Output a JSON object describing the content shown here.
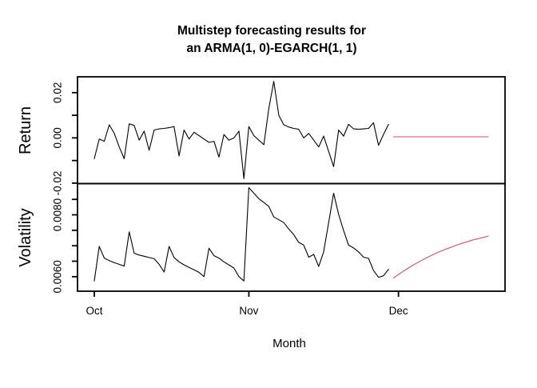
{
  "title": {
    "line1": "Multistep forecasting results for",
    "line2": "an ARMA(1, 0)-EGARCH(1, 1)"
  },
  "colors": {
    "observed": "#000000",
    "forecast": "#d25067",
    "axis": "#000000",
    "background": "#ffffff"
  },
  "x_axis": {
    "label": "Month",
    "ticks": [
      {
        "day": 0,
        "label": "Oct"
      },
      {
        "day": 31,
        "label": "Nov"
      },
      {
        "day": 61,
        "label": "Dec"
      }
    ]
  },
  "chart_data": [
    {
      "type": "line",
      "title": "Multistep forecasting results for an ARMA(1, 0)-EGARCH(1, 1)",
      "ylabel": "Return",
      "xlabel": "Month",
      "ylim": [
        -0.0202,
        0.027
      ],
      "grid": false,
      "yticks": [
        {
          "value": 0.02,
          "label": "0.02"
        },
        {
          "value": 0.01,
          "label": ""
        },
        {
          "value": 0.0,
          "label": "0.00"
        },
        {
          "value": -0.01,
          "label": ""
        },
        {
          "value": -0.02,
          "label": "-0.02"
        }
      ],
      "series": [
        {
          "name": "observed-return",
          "color_key": "observed",
          "start_day": 0,
          "values": [
            -0.0092,
            -0.0005,
            -0.0015,
            0.0058,
            0.002,
            -0.004,
            -0.0092,
            0.0062,
            0.0055,
            -0.001,
            0.003,
            -0.0055,
            0.0035,
            0.004,
            0.0042,
            0.0045,
            0.005,
            -0.008,
            0.0035,
            -0.0005,
            0.0025,
            0.001,
            -0.0005,
            -0.002,
            -0.0015,
            -0.0085,
            0.0015,
            -0.001,
            0.0,
            0.003,
            -0.018,
            0.005,
            0.001,
            -0.001,
            -0.003,
            0.013,
            0.025,
            0.01,
            0.0058,
            0.0048,
            0.0042,
            0.0038,
            0.0,
            0.002,
            -0.001,
            -0.004,
            0.0008,
            -0.006,
            -0.0127,
            0.0035,
            0.0008,
            0.006,
            0.004,
            0.0038,
            0.004,
            0.0042,
            0.0067,
            -0.0033,
            0.0015,
            0.006
          ]
        },
        {
          "name": "forecast-return",
          "color_key": "forecast",
          "start_day": 60,
          "values": [
            0.0005,
            0.0005,
            0.0005,
            0.0005,
            0.0005,
            0.0005,
            0.0005,
            0.0005,
            0.0005,
            0.0005,
            0.0005,
            0.0005,
            0.0005,
            0.0005,
            0.0005,
            0.0005,
            0.0005,
            0.0005,
            0.0005,
            0.0005
          ]
        }
      ]
    },
    {
      "type": "line",
      "ylabel": "Volatility",
      "xlabel": "Month",
      "ylim": [
        0.00553,
        0.00901
      ],
      "grid": false,
      "yticks": [
        {
          "value": 0.0085,
          "label": ""
        },
        {
          "value": 0.008,
          "label": "0.0080"
        },
        {
          "value": 0.0075,
          "label": ""
        },
        {
          "value": 0.007,
          "label": ""
        },
        {
          "value": 0.0065,
          "label": ""
        },
        {
          "value": 0.006,
          "label": "0.0060"
        }
      ],
      "series": [
        {
          "name": "observed-volatility",
          "color_key": "observed",
          "start_day": 0,
          "values": [
            0.00586,
            0.00698,
            0.0066,
            0.00652,
            0.00645,
            0.0064,
            0.00634,
            0.00745,
            0.00676,
            0.0067,
            0.00666,
            0.00662,
            0.00658,
            0.0064,
            0.00615,
            0.00698,
            0.00662,
            0.00648,
            0.00638,
            0.0063,
            0.00622,
            0.00614,
            0.006,
            0.00692,
            0.00668,
            0.0066,
            0.00648,
            0.00638,
            0.00628,
            0.006,
            0.00586,
            0.00888,
            0.0087,
            0.00852,
            0.0084,
            0.00827,
            0.00793,
            0.00784,
            0.00775,
            0.00754,
            0.00736,
            0.00711,
            0.00702,
            0.00663,
            0.00672,
            0.00633,
            0.0068,
            0.00775,
            0.0087,
            0.00801,
            0.00749,
            0.00702,
            0.00693,
            0.0068,
            0.00663,
            0.00659,
            0.0062,
            0.00598,
            0.00603,
            0.00624
          ]
        },
        {
          "name": "forecast-volatility",
          "color_key": "forecast",
          "start_day": 60,
          "values": [
            0.00596,
            0.00607,
            0.00618,
            0.00628,
            0.00638,
            0.00647,
            0.00656,
            0.00664,
            0.00672,
            0.00679,
            0.00686,
            0.00692,
            0.00698,
            0.00704,
            0.00709,
            0.00714,
            0.00719,
            0.00723,
            0.00727,
            0.00731
          ]
        }
      ]
    }
  ]
}
